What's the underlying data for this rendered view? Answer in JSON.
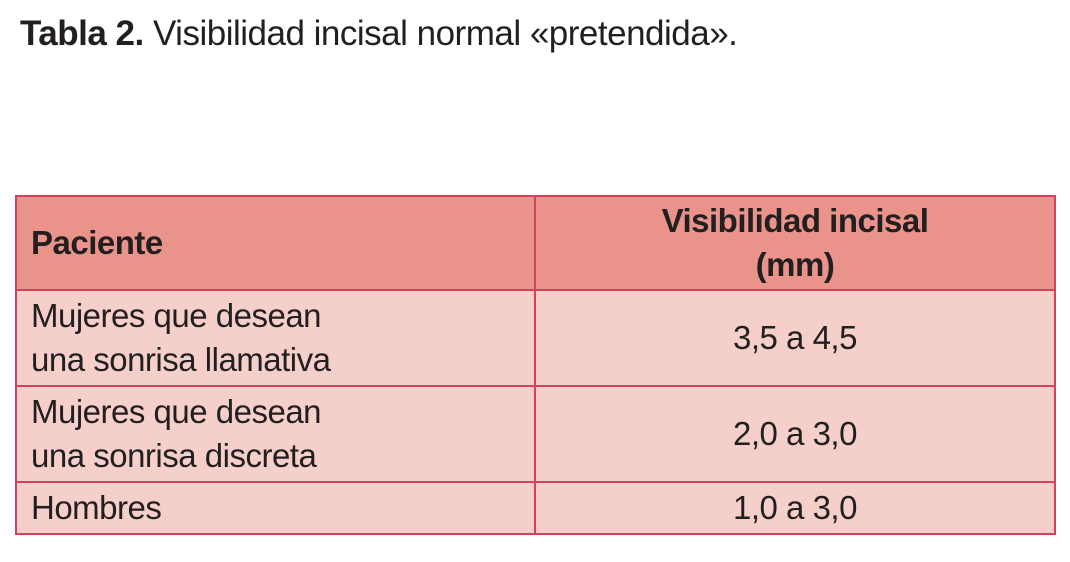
{
  "caption": {
    "label": "Tabla 2.",
    "title": "Visibilidad incisal normal «pretendida»."
  },
  "table": {
    "headers": {
      "patient": "Paciente",
      "visibility_line1": "Visibilidad incisal",
      "visibility_line2": "(mm)"
    },
    "rows": [
      {
        "patient_line1": "Mujeres que desean",
        "patient_line2": "una sonrisa llamativa",
        "visibility": "3,5 a 4,5"
      },
      {
        "patient_line1": "Mujeres que desean",
        "patient_line2": "una sonrisa discreta",
        "visibility": "2,0 a 3,0"
      },
      {
        "patient_line1": "Hombres",
        "visibility": "1,0 a 3,0"
      }
    ],
    "colors": {
      "border": "#d2435b",
      "header_bg": "#e9938b",
      "cell_bg": "#f5cfca",
      "text": "#231f20"
    }
  }
}
